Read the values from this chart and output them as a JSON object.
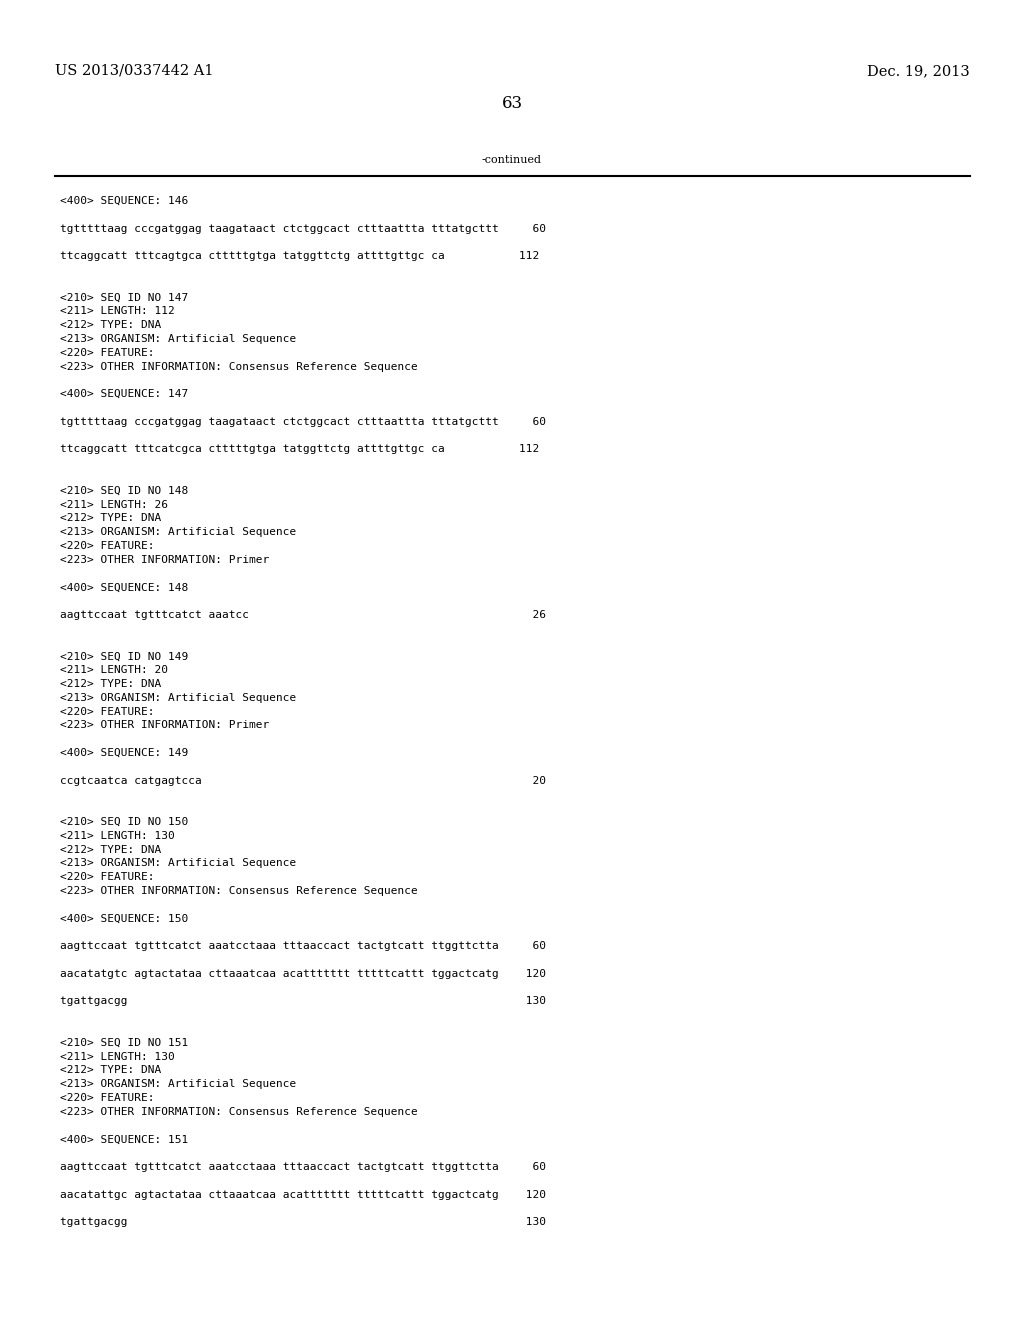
{
  "bg_color": "#ffffff",
  "header_left": "US 2013/0337442 A1",
  "header_right": "Dec. 19, 2013",
  "page_number": "63",
  "continued_label": "-continued",
  "font_size_header": 10.5,
  "font_size_body": 8.0,
  "font_size_page": 12,
  "lines": [
    {
      "text": "<400> SEQUENCE: 146"
    },
    {
      "text": ""
    },
    {
      "text": "tgtttttaag cccgatggag taagataact ctctggcact ctttaattta tttatgcttt     60"
    },
    {
      "text": ""
    },
    {
      "text": "ttcaggcatt tttcagtgca ctttttgtga tatggttctg attttgttgc ca           112"
    },
    {
      "text": ""
    },
    {
      "text": ""
    },
    {
      "text": "<210> SEQ ID NO 147"
    },
    {
      "text": "<211> LENGTH: 112"
    },
    {
      "text": "<212> TYPE: DNA"
    },
    {
      "text": "<213> ORGANISM: Artificial Sequence"
    },
    {
      "text": "<220> FEATURE:"
    },
    {
      "text": "<223> OTHER INFORMATION: Consensus Reference Sequence"
    },
    {
      "text": ""
    },
    {
      "text": "<400> SEQUENCE: 147"
    },
    {
      "text": ""
    },
    {
      "text": "tgtttttaag cccgatggag taagataact ctctggcact ctttaattta tttatgcttt     60"
    },
    {
      "text": ""
    },
    {
      "text": "ttcaggcatt tttcatcgca ctttttgtga tatggttctg attttgttgc ca           112"
    },
    {
      "text": ""
    },
    {
      "text": ""
    },
    {
      "text": "<210> SEQ ID NO 148"
    },
    {
      "text": "<211> LENGTH: 26"
    },
    {
      "text": "<212> TYPE: DNA"
    },
    {
      "text": "<213> ORGANISM: Artificial Sequence"
    },
    {
      "text": "<220> FEATURE:"
    },
    {
      "text": "<223> OTHER INFORMATION: Primer"
    },
    {
      "text": ""
    },
    {
      "text": "<400> SEQUENCE: 148"
    },
    {
      "text": ""
    },
    {
      "text": "aagttccaat tgtttcatct aaatcc                                          26"
    },
    {
      "text": ""
    },
    {
      "text": ""
    },
    {
      "text": "<210> SEQ ID NO 149"
    },
    {
      "text": "<211> LENGTH: 20"
    },
    {
      "text": "<212> TYPE: DNA"
    },
    {
      "text": "<213> ORGANISM: Artificial Sequence"
    },
    {
      "text": "<220> FEATURE:"
    },
    {
      "text": "<223> OTHER INFORMATION: Primer"
    },
    {
      "text": ""
    },
    {
      "text": "<400> SEQUENCE: 149"
    },
    {
      "text": ""
    },
    {
      "text": "ccgtcaatca catgagtcca                                                 20"
    },
    {
      "text": ""
    },
    {
      "text": ""
    },
    {
      "text": "<210> SEQ ID NO 150"
    },
    {
      "text": "<211> LENGTH: 130"
    },
    {
      "text": "<212> TYPE: DNA"
    },
    {
      "text": "<213> ORGANISM: Artificial Sequence"
    },
    {
      "text": "<220> FEATURE:"
    },
    {
      "text": "<223> OTHER INFORMATION: Consensus Reference Sequence"
    },
    {
      "text": ""
    },
    {
      "text": "<400> SEQUENCE: 150"
    },
    {
      "text": ""
    },
    {
      "text": "aagttccaat tgtttcatct aaatcctaaa tttaaccact tactgtcatt ttggttctta     60"
    },
    {
      "text": ""
    },
    {
      "text": "aacatatgtc agtactataa cttaaatcaa acattttttt tttttcattt tggactcatg    120"
    },
    {
      "text": ""
    },
    {
      "text": "tgattgacgg                                                           130"
    },
    {
      "text": ""
    },
    {
      "text": ""
    },
    {
      "text": "<210> SEQ ID NO 151"
    },
    {
      "text": "<211> LENGTH: 130"
    },
    {
      "text": "<212> TYPE: DNA"
    },
    {
      "text": "<213> ORGANISM: Artificial Sequence"
    },
    {
      "text": "<220> FEATURE:"
    },
    {
      "text": "<223> OTHER INFORMATION: Consensus Reference Sequence"
    },
    {
      "text": ""
    },
    {
      "text": "<400> SEQUENCE: 151"
    },
    {
      "text": ""
    },
    {
      "text": "aagttccaat tgtttcatct aaatcctaaa tttaaccact tactgtcatt ttggttctta     60"
    },
    {
      "text": ""
    },
    {
      "text": "aacatattgc agtactataa cttaaatcaa acattttttt tttttcattt tggactcatg    120"
    },
    {
      "text": ""
    },
    {
      "text": "tgattgacgg                                                           130"
    }
  ]
}
